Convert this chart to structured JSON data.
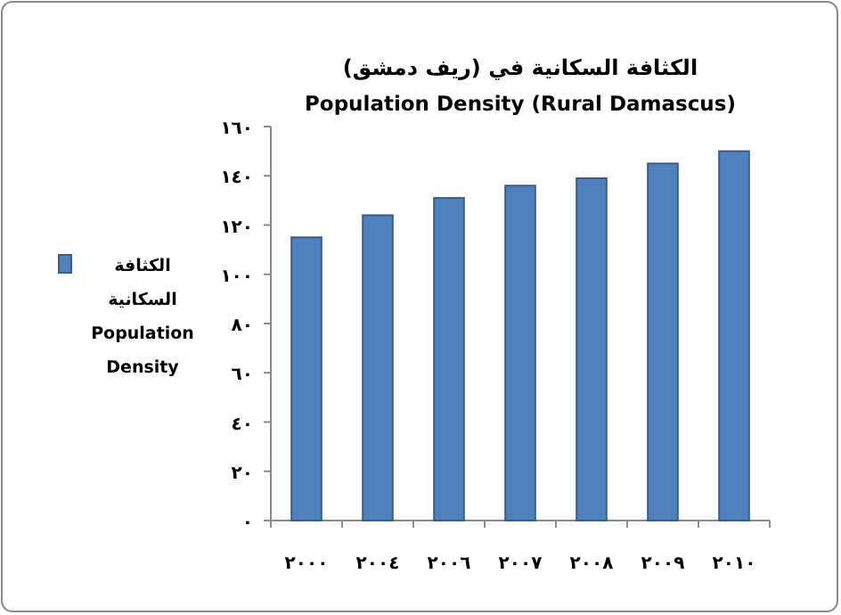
{
  "chart_data": {
    "type": "bar",
    "title": "الكثافة السكانية في (ريف دمشق)",
    "subtitle": "Population Density (Rural Damascus)",
    "categories": [
      "٢٠٠٠",
      "٢٠٠٤",
      "٢٠٠٦",
      "٢٠٠٧",
      "٢٠٠٨",
      "٢٠٠٩",
      "٢٠١٠"
    ],
    "series": [
      {
        "name": "الكثافة السكانية Population Density",
        "color": "#4f81bd",
        "values": [
          115,
          124,
          131,
          136,
          139,
          145,
          150
        ]
      }
    ],
    "ylim": [
      0,
      160
    ],
    "yticks": [
      {
        "value": 0,
        "label": "٠"
      },
      {
        "value": 20,
        "label": "٢٠"
      },
      {
        "value": 40,
        "label": "٤٠"
      },
      {
        "value": 60,
        "label": "٦٠"
      },
      {
        "value": 80,
        "label": "٨٠"
      },
      {
        "value": 100,
        "label": "١٠٠"
      },
      {
        "value": 120,
        "label": "١٢٠"
      },
      {
        "value": 140,
        "label": "١٤٠"
      },
      {
        "value": 160,
        "label": "١٦٠"
      }
    ],
    "grid": false,
    "legend": "left"
  }
}
